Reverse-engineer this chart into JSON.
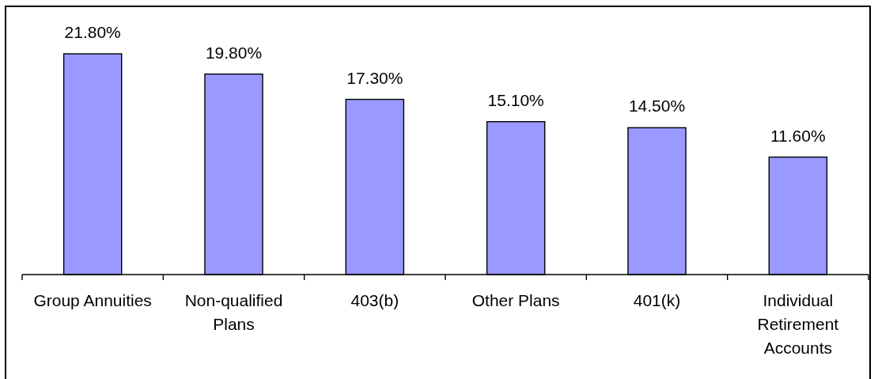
{
  "chart_data": {
    "type": "bar",
    "categories": [
      "Group Annuities",
      "Non-qualified Plans",
      "403(b)",
      "Other Plans",
      "401(k)",
      "Individual Retirement Accounts"
    ],
    "values": [
      21.8,
      19.8,
      17.3,
      15.1,
      14.5,
      11.6
    ],
    "value_labels": [
      "21.80%",
      "19.80%",
      "17.30%",
      "15.10%",
      "14.50%",
      "11.60%"
    ],
    "color": "#9999ff"
  }
}
